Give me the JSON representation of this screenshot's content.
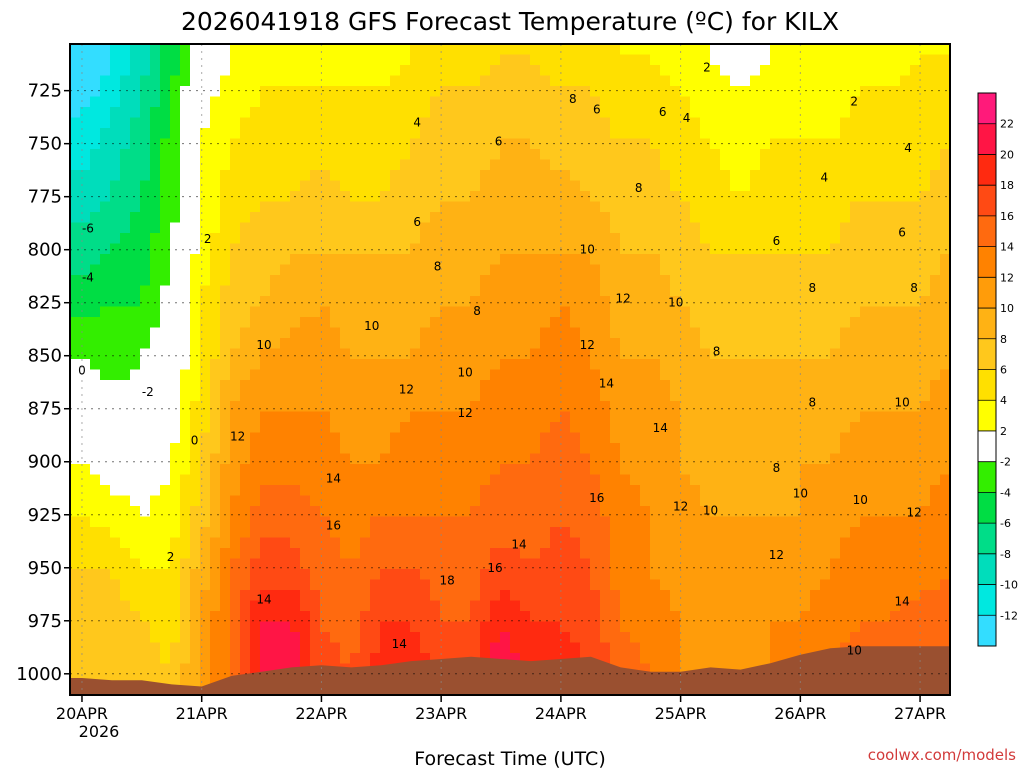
{
  "chart_data": {
    "type": "heatmap",
    "title": "2026041918 GFS Forecast Temperature (ºC) for KILX",
    "xlabel": "Forecast Time (UTC)",
    "ylabel": "",
    "credit": "coolwx.com/models",
    "x_tick_labels": [
      "20APR",
      "21APR",
      "22APR",
      "23APR",
      "24APR",
      "25APR",
      "26APR",
      "27APR"
    ],
    "x_year_label": "2026",
    "x_days": [
      0,
      1,
      2,
      3,
      4,
      5,
      6,
      7
    ],
    "xlim_days": [
      -0.1,
      7.25
    ],
    "pressure_levels_hpa": [
      725,
      750,
      775,
      800,
      825,
      850,
      875,
      900,
      925,
      950,
      975,
      1000
    ],
    "pressure_tick_labels": [
      "725",
      "750",
      "775",
      "800",
      "825",
      "850",
      "875",
      "900",
      "925",
      "950",
      "975",
      "1000"
    ],
    "ylim_hpa": [
      703,
      1010
    ],
    "colorbar": {
      "labels": [
        "22",
        "20",
        "18",
        "16",
        "14",
        "12",
        "10",
        "8",
        "6",
        "4",
        "2",
        "-2",
        "-4",
        "-6",
        "-8",
        "-10",
        "-12"
      ],
      "bins": [
        {
          "range": "22+",
          "color": "#ff1a7a"
        },
        {
          "range": "20-22",
          "color": "#ff1545"
        },
        {
          "range": "18-20",
          "color": "#ff2a10"
        },
        {
          "range": "16-18",
          "color": "#ff4a14"
        },
        {
          "range": "14-16",
          "color": "#ff6a0f"
        },
        {
          "range": "12-14",
          "color": "#ff8200"
        },
        {
          "range": "10-12",
          "color": "#ff9c0a"
        },
        {
          "range": "8-10",
          "color": "#ffb214"
        },
        {
          "range": "6-8",
          "color": "#ffc81c"
        },
        {
          "range": "4-6",
          "color": "#ffe000"
        },
        {
          "range": "2-4",
          "color": "#ffff00"
        },
        {
          "range": "-2-2",
          "color": "#ffffff"
        },
        {
          "range": "-4--2",
          "color": "#33ee00"
        },
        {
          "range": "-6--4",
          "color": "#00dd44"
        },
        {
          "range": "-8--6",
          "color": "#00dd88"
        },
        {
          "range": "-10--8",
          "color": "#00ddbb"
        },
        {
          "range": "-12--10",
          "color": "#00e8e0"
        },
        {
          "range": "<-12",
          "color": "#33ddff"
        }
      ]
    },
    "terrain_color": "#9a5030",
    "surface_pressure_hpa": [
      1002,
      1003,
      1003,
      1005,
      1006,
      1001,
      999,
      997,
      996,
      997,
      996,
      994,
      993,
      992,
      993,
      994,
      993,
      992,
      997,
      999,
      999,
      997,
      998,
      995,
      991,
      988,
      987
    ],
    "temperature_field": {
      "time_step_days": 0.25,
      "levels_hpa": [
        710,
        725,
        750,
        775,
        800,
        825,
        850,
        875,
        900,
        925,
        950,
        975,
        1000
      ],
      "rows_note": "each row = one time step (days 0..7.25), values at levels_hpa in deg C",
      "rows": [
        [
          -14,
          -13,
          -11,
          -9,
          -7,
          -5,
          -2,
          0,
          2,
          4,
          6,
          7,
          8
        ],
        [
          -12,
          -11,
          -9,
          -8,
          -6,
          -4,
          -3,
          -1,
          1,
          3,
          6,
          7,
          8
        ],
        [
          -9,
          -8,
          -7,
          -6,
          -5,
          -4,
          -2,
          -1,
          0,
          2,
          4,
          6,
          7
        ],
        [
          -5,
          -4,
          -3,
          -3,
          -2,
          -1,
          0,
          1,
          2,
          3,
          4,
          5,
          6
        ],
        [
          0,
          1,
          2,
          2,
          3,
          4,
          4,
          5,
          6,
          7,
          9,
          10,
          11
        ],
        [
          2,
          3,
          4,
          5,
          6,
          7,
          8,
          10,
          11,
          12,
          14,
          15,
          14
        ],
        [
          3,
          4,
          5,
          6,
          7,
          8,
          10,
          12,
          13,
          15,
          17,
          20,
          20
        ],
        [
          3,
          4,
          5,
          6,
          8,
          9,
          11,
          12,
          13,
          15,
          17,
          20,
          22
        ],
        [
          3,
          4,
          5,
          7,
          8,
          10,
          11,
          12,
          13,
          14,
          15,
          16,
          17
        ],
        [
          3,
          4,
          5,
          6,
          8,
          9,
          10,
          11,
          12,
          13,
          14,
          15,
          16
        ],
        [
          3,
          4,
          5,
          6,
          8,
          9,
          10,
          11,
          12,
          14,
          16,
          18,
          19
        ],
        [
          4,
          5,
          6,
          7,
          8,
          9,
          10,
          12,
          13,
          14,
          16,
          18,
          20
        ],
        [
          5,
          6,
          7,
          8,
          9,
          10,
          11,
          12,
          13,
          14,
          15,
          16,
          17
        ],
        [
          5,
          6,
          7,
          8,
          9,
          10,
          11,
          12,
          13,
          14,
          15,
          16,
          17
        ],
        [
          6,
          7,
          8,
          9,
          10,
          11,
          12,
          13,
          14,
          15,
          17,
          20,
          22
        ],
        [
          6,
          7,
          8,
          9,
          10,
          11,
          12,
          13,
          14,
          15,
          16,
          18,
          19
        ],
        [
          5,
          6,
          7,
          9,
          10,
          12,
          13,
          14,
          15,
          16,
          17,
          18,
          19
        ],
        [
          5,
          6,
          7,
          8,
          10,
          11,
          12,
          13,
          14,
          15,
          16,
          17,
          18
        ],
        [
          4,
          5,
          6,
          7,
          8,
          9,
          10,
          11,
          12,
          13,
          13,
          14,
          15
        ],
        [
          4,
          5,
          6,
          7,
          8,
          9,
          10,
          11,
          11,
          12,
          12,
          13,
          14
        ],
        [
          3,
          4,
          5,
          6,
          7,
          8,
          9,
          10,
          10,
          11,
          11,
          12,
          12
        ],
        [
          2,
          3,
          4,
          5,
          6,
          7,
          8,
          9,
          9,
          10,
          10,
          11,
          11
        ],
        [
          1,
          2,
          3,
          4,
          6,
          7,
          8,
          8,
          9,
          10,
          11,
          12,
          12
        ],
        [
          2,
          3,
          4,
          5,
          6,
          7,
          8,
          9,
          9,
          10,
          11,
          12,
          12
        ],
        [
          2,
          3,
          4,
          5,
          6,
          7,
          8,
          9,
          10,
          10,
          11,
          12,
          13
        ],
        [
          2,
          3,
          4,
          5,
          6,
          7,
          8,
          9,
          10,
          11,
          12,
          13,
          14
        ],
        [
          3,
          4,
          5,
          6,
          7,
          8,
          9,
          10,
          11,
          12,
          13,
          14,
          15
        ],
        [
          3,
          4,
          5,
          6,
          7,
          8,
          9,
          10,
          11,
          12,
          13,
          14,
          16
        ],
        [
          4,
          5,
          5,
          6,
          7,
          8,
          9,
          10,
          11,
          12,
          13,
          15,
          16
        ],
        [
          4,
          5,
          6,
          7,
          8,
          9,
          10,
          11,
          12,
          13,
          14,
          15,
          16
        ]
      ]
    },
    "contour_labels": [
      {
        "text": "-6",
        "day": 0.05,
        "hpa": 790
      },
      {
        "text": "-4",
        "day": 0.05,
        "hpa": 813
      },
      {
        "text": "-2",
        "day": 0.55,
        "hpa": 867
      },
      {
        "text": "0",
        "day": 0.0,
        "hpa": 857
      },
      {
        "text": "0",
        "day": 0.94,
        "hpa": 890
      },
      {
        "text": "2",
        "day": 1.05,
        "hpa": 795
      },
      {
        "text": "2",
        "day": 0.74,
        "hpa": 945
      },
      {
        "text": "4",
        "day": 2.8,
        "hpa": 740
      },
      {
        "text": "6",
        "day": 2.8,
        "hpa": 787
      },
      {
        "text": "8",
        "day": 2.97,
        "hpa": 808
      },
      {
        "text": "10",
        "day": 1.52,
        "hpa": 845
      },
      {
        "text": "10",
        "day": 2.42,
        "hpa": 836
      },
      {
        "text": "12",
        "day": 1.3,
        "hpa": 888
      },
      {
        "text": "12",
        "day": 2.71,
        "hpa": 866
      },
      {
        "text": "14",
        "day": 2.1,
        "hpa": 908
      },
      {
        "text": "14",
        "day": 1.52,
        "hpa": 965
      },
      {
        "text": "16",
        "day": 2.1,
        "hpa": 930
      },
      {
        "text": "18",
        "day": 3.05,
        "hpa": 956
      },
      {
        "text": "14",
        "day": 2.65,
        "hpa": 986
      },
      {
        "text": "8",
        "day": 3.3,
        "hpa": 829
      },
      {
        "text": "10",
        "day": 3.2,
        "hpa": 858
      },
      {
        "text": "12",
        "day": 3.2,
        "hpa": 877
      },
      {
        "text": "14",
        "day": 3.65,
        "hpa": 939
      },
      {
        "text": "16",
        "day": 3.45,
        "hpa": 950
      },
      {
        "text": "6",
        "day": 3.48,
        "hpa": 749
      },
      {
        "text": "8",
        "day": 4.1,
        "hpa": 729
      },
      {
        "text": "6",
        "day": 4.3,
        "hpa": 734
      },
      {
        "text": "10",
        "day": 4.22,
        "hpa": 800
      },
      {
        "text": "8",
        "day": 4.65,
        "hpa": 771
      },
      {
        "text": "12",
        "day": 4.22,
        "hpa": 845
      },
      {
        "text": "12",
        "day": 4.52,
        "hpa": 823
      },
      {
        "text": "14",
        "day": 4.38,
        "hpa": 863
      },
      {
        "text": "16",
        "day": 4.3,
        "hpa": 917
      },
      {
        "text": "14",
        "day": 4.83,
        "hpa": 884
      },
      {
        "text": "10",
        "day": 4.96,
        "hpa": 825
      },
      {
        "text": "12",
        "day": 5.0,
        "hpa": 921
      },
      {
        "text": "10",
        "day": 5.25,
        "hpa": 923
      },
      {
        "text": "8",
        "day": 5.3,
        "hpa": 848
      },
      {
        "text": "6",
        "day": 4.85,
        "hpa": 735
      },
      {
        "text": "4",
        "day": 5.05,
        "hpa": 738
      },
      {
        "text": "2",
        "day": 5.22,
        "hpa": 714
      },
      {
        "text": "4",
        "day": 6.2,
        "hpa": 766
      },
      {
        "text": "6",
        "day": 5.8,
        "hpa": 796
      },
      {
        "text": "8",
        "day": 6.1,
        "hpa": 872
      },
      {
        "text": "8",
        "day": 5.8,
        "hpa": 903
      },
      {
        "text": "10",
        "day": 6.0,
        "hpa": 915
      },
      {
        "text": "12",
        "day": 5.8,
        "hpa": 944
      },
      {
        "text": "8",
        "day": 6.1,
        "hpa": 818
      },
      {
        "text": "2",
        "day": 6.45,
        "hpa": 730
      },
      {
        "text": "4",
        "day": 6.9,
        "hpa": 752
      },
      {
        "text": "6",
        "day": 6.85,
        "hpa": 792
      },
      {
        "text": "8",
        "day": 6.95,
        "hpa": 818
      },
      {
        "text": "10",
        "day": 6.85,
        "hpa": 872
      },
      {
        "text": "10",
        "day": 6.5,
        "hpa": 918
      },
      {
        "text": "12",
        "day": 6.95,
        "hpa": 924
      },
      {
        "text": "14",
        "day": 6.85,
        "hpa": 966
      },
      {
        "text": "10",
        "day": 6.45,
        "hpa": 989
      }
    ]
  }
}
